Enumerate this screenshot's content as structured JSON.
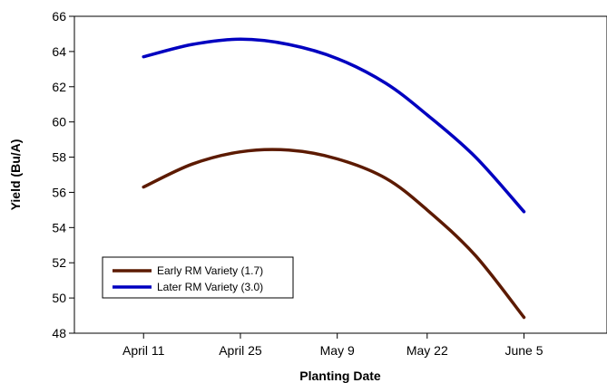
{
  "chart_data": {
    "type": "line",
    "xlabel": "Planting Date",
    "ylabel": "Yield (Bu/A)",
    "x_ticks": [
      "April 11",
      "April 25",
      "May 9",
      "May 22",
      "June 5"
    ],
    "xlim": [
      "April 1",
      "June 17"
    ],
    "ylim": [
      48,
      66
    ],
    "y_ticks": [
      48,
      50,
      52,
      54,
      56,
      58,
      60,
      62,
      64,
      66
    ],
    "grid": false,
    "legend_position": "bottom-left",
    "series": [
      {
        "name": "Early RM Variety (1.7)",
        "color": "#5c1a00",
        "x": [
          "April 11",
          "April 18",
          "April 25",
          "May 2",
          "May 9",
          "May 16",
          "May 22",
          "May 29",
          "June 5"
        ],
        "y": [
          56.3,
          57.6,
          58.3,
          58.4,
          57.9,
          56.8,
          55.0,
          52.4,
          48.9
        ]
      },
      {
        "name": "Later RM Variety (3.0)",
        "color": "#0000c0",
        "x": [
          "April 11",
          "April 18",
          "April 25",
          "May 2",
          "May 9",
          "May 16",
          "May 22",
          "May 29",
          "June 5"
        ],
        "y": [
          63.7,
          64.4,
          64.7,
          64.4,
          63.6,
          62.2,
          60.4,
          58.0,
          54.9
        ]
      }
    ]
  }
}
